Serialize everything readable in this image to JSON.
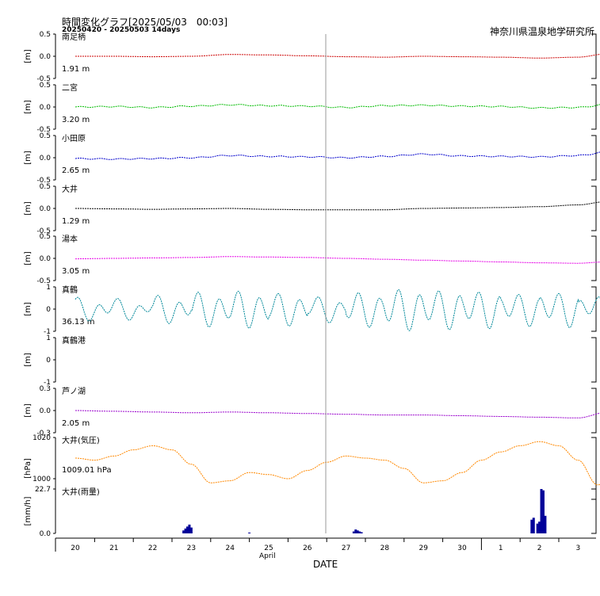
{
  "header": {
    "title": "時間変化グラフ[2025/05/03　00:03]",
    "period": "20250420 - 20250503 14days",
    "organization": "神奈川県温泉地学研究所"
  },
  "xaxis": {
    "label": "DATE",
    "month_label": "April",
    "day_ticks": [
      "20",
      "21",
      "22",
      "23",
      "24",
      "25",
      "26",
      "27",
      "28",
      "29",
      "30",
      "1",
      "2",
      "3"
    ]
  },
  "colors": {
    "minamiashigara": "#cc0000",
    "ninomiya": "#00bb00",
    "odawara": "#0000cc",
    "oi": "#000000",
    "yumoto": "#e600e6",
    "manazuru": "#008899",
    "ashinoko": "#9900cc",
    "pressure": "#ff8800",
    "rain": "#000099"
  },
  "chart_data": [
    {
      "type": "line",
      "name": "南足柄",
      "unit_label": "[m]",
      "value_label": "1.91 m",
      "ylim": [
        -0.5,
        0.5
      ],
      "yticks": [
        "0.5",
        "0.0",
        "-0.5"
      ],
      "tick_values": [
        0.5,
        0,
        -0.5
      ],
      "x": [
        0,
        1,
        2,
        3,
        4,
        5,
        6,
        7,
        8,
        9,
        10,
        11,
        12,
        13,
        13.7
      ],
      "y": [
        0.0,
        0.0,
        -0.01,
        0.0,
        0.04,
        0.03,
        0.01,
        -0.01,
        -0.02,
        0.0,
        -0.01,
        -0.02,
        -0.04,
        -0.02,
        0.05
      ]
    },
    {
      "type": "line",
      "name": "二宮",
      "unit_label": "[m]",
      "value_label": "3.20 m",
      "ylim": [
        -0.5,
        0.5
      ],
      "yticks": [
        "0.5",
        "0.0",
        "-0.5"
      ],
      "tick_values": [
        0.5,
        0,
        -0.5
      ],
      "x": [
        0,
        1,
        2,
        3,
        4,
        5,
        6,
        7,
        8,
        9,
        10,
        11,
        12,
        13,
        13.7
      ],
      "y": [
        0.0,
        0.01,
        -0.01,
        0.02,
        0.05,
        0.03,
        0.02,
        -0.01,
        0.03,
        0.04,
        0.02,
        0.01,
        -0.02,
        -0.01,
        0.05
      ]
    },
    {
      "type": "line",
      "name": "小田原",
      "unit_label": "[m]",
      "value_label": "2.65 m",
      "ylim": [
        -0.5,
        0.5
      ],
      "yticks": [
        "0.5",
        "0.0",
        "-0.5"
      ],
      "tick_values": [
        0.5,
        0,
        -0.5
      ],
      "x": [
        0,
        1,
        2,
        3,
        4,
        5,
        6,
        7,
        8,
        9,
        10,
        11,
        12,
        13,
        13.7
      ],
      "y": [
        -0.02,
        -0.03,
        -0.02,
        0.0,
        0.05,
        0.03,
        0.02,
        0.0,
        0.03,
        0.08,
        0.04,
        0.03,
        0.02,
        0.05,
        0.12
      ]
    },
    {
      "type": "line",
      "name": "大井",
      "unit_label": "[m]",
      "value_label": "1.29 m",
      "ylim": [
        -0.5,
        0.5
      ],
      "yticks": [
        "0.5",
        "0.0",
        "-0.5"
      ],
      "tick_values": [
        0.5,
        0,
        -0.5
      ],
      "x": [
        0,
        1,
        2,
        3,
        4,
        5,
        6,
        7,
        8,
        9,
        10,
        11,
        12,
        13,
        13.7
      ],
      "y": [
        0.0,
        -0.01,
        -0.02,
        -0.01,
        0.0,
        -0.02,
        -0.03,
        -0.03,
        -0.03,
        0.0,
        0.01,
        0.02,
        0.04,
        0.08,
        0.15
      ]
    },
    {
      "type": "line",
      "name": "湯本",
      "unit_label": "[m]",
      "value_label": "3.05 m",
      "ylim": [
        -0.5,
        0.5
      ],
      "yticks": [
        "0.5",
        "0.0",
        "-0.5"
      ],
      "tick_values": [
        0.5,
        0,
        -0.5
      ],
      "x": [
        0,
        1,
        2,
        3,
        4,
        5,
        6,
        7,
        8,
        9,
        10,
        11,
        12,
        13,
        13.7
      ],
      "y": [
        -0.01,
        0.0,
        0.01,
        0.02,
        0.04,
        0.03,
        0.02,
        0.0,
        -0.02,
        -0.04,
        -0.06,
        -0.08,
        -0.1,
        -0.11,
        -0.08
      ]
    },
    {
      "type": "line",
      "name": "真鶴",
      "unit_label": "[m]",
      "value_label": "36.13 m",
      "ylim": [
        -1,
        1
      ],
      "yticks": [
        "1",
        "0",
        "-1"
      ],
      "tick_values": [
        1,
        0,
        -1
      ],
      "x_start": 0,
      "x_end": 13.7,
      "tide": {
        "semidiurnal_amplitude": [
          0.35,
          0.3,
          0.45,
          0.6,
          0.65,
          0.55,
          0.4,
          0.6,
          0.75,
          0.7,
          0.65,
          0.55,
          0.6,
          0.45
        ],
        "diurnal_amplitude": 0.25,
        "offset": 0.0
      }
    },
    {
      "type": "line",
      "name": "真鶴港",
      "unit_label": "[m]",
      "value_label": "",
      "ylim": [
        -1,
        1
      ],
      "yticks": [
        "1",
        "0",
        "-1"
      ],
      "tick_values": [
        1,
        0,
        -1
      ],
      "x": [],
      "y": []
    },
    {
      "type": "line",
      "name": "芦ノ湖",
      "unit_label": "[m]",
      "value_label": "2.05 m",
      "ylim": [
        -0.3,
        0.3
      ],
      "yticks": [
        "0.3",
        "0.0",
        "-0.3"
      ],
      "tick_values": [
        0.3,
        0,
        -0.3
      ],
      "x": [
        0,
        1,
        2,
        3,
        4,
        5,
        6,
        7,
        8,
        9,
        10,
        11,
        12,
        13,
        13.7
      ],
      "y": [
        0.0,
        -0.01,
        -0.02,
        -0.03,
        -0.02,
        -0.03,
        -0.04,
        -0.05,
        -0.06,
        -0.06,
        -0.07,
        -0.08,
        -0.09,
        -0.1,
        -0.03
      ]
    },
    {
      "type": "line",
      "name": "大井(気圧)",
      "unit_label": "[hPa]",
      "value_label": "1009.01 hPa",
      "ylim": [
        990,
        1020
      ],
      "yticks": [
        "1020",
        "1000"
      ],
      "tick_values": [
        1020,
        1000
      ],
      "x": [
        0,
        0.5,
        1,
        1.5,
        2,
        2.5,
        3,
        3.5,
        4,
        4.5,
        5,
        5.5,
        6,
        6.5,
        7,
        7.5,
        8,
        8.5,
        9,
        9.5,
        10,
        10.5,
        11,
        11.5,
        12,
        12.5,
        13,
        13.5,
        13.7
      ],
      "y": [
        1010,
        1009,
        1011,
        1014,
        1016,
        1014,
        1007,
        998,
        999,
        1003,
        1002,
        1000,
        1004,
        1008,
        1011,
        1010,
        1009,
        1005,
        998,
        999,
        1003,
        1009,
        1013,
        1016,
        1018,
        1016,
        1009,
        997,
        998
      ]
    },
    {
      "type": "bar",
      "name": "大井(雨量)",
      "unit_label": "[mm/h]",
      "value_label": "",
      "ylim": [
        0,
        22.7
      ],
      "yticks": [
        "22.7",
        "0.0"
      ],
      "tick_values": [
        22.7,
        0
      ],
      "x": [
        2.8,
        2.85,
        2.9,
        2.95,
        3.0,
        4.5,
        7.2,
        7.25,
        7.3,
        7.35,
        7.4,
        11.8,
        11.85,
        11.95,
        12.0,
        12.05,
        12.1,
        12.15
      ],
      "y": [
        1.5,
        2.5,
        3.5,
        4.5,
        3.0,
        0.4,
        1.0,
        2.0,
        1.5,
        1.0,
        0.6,
        7.0,
        8.0,
        5.0,
        6.0,
        22.7,
        22.0,
        9.0
      ]
    }
  ]
}
